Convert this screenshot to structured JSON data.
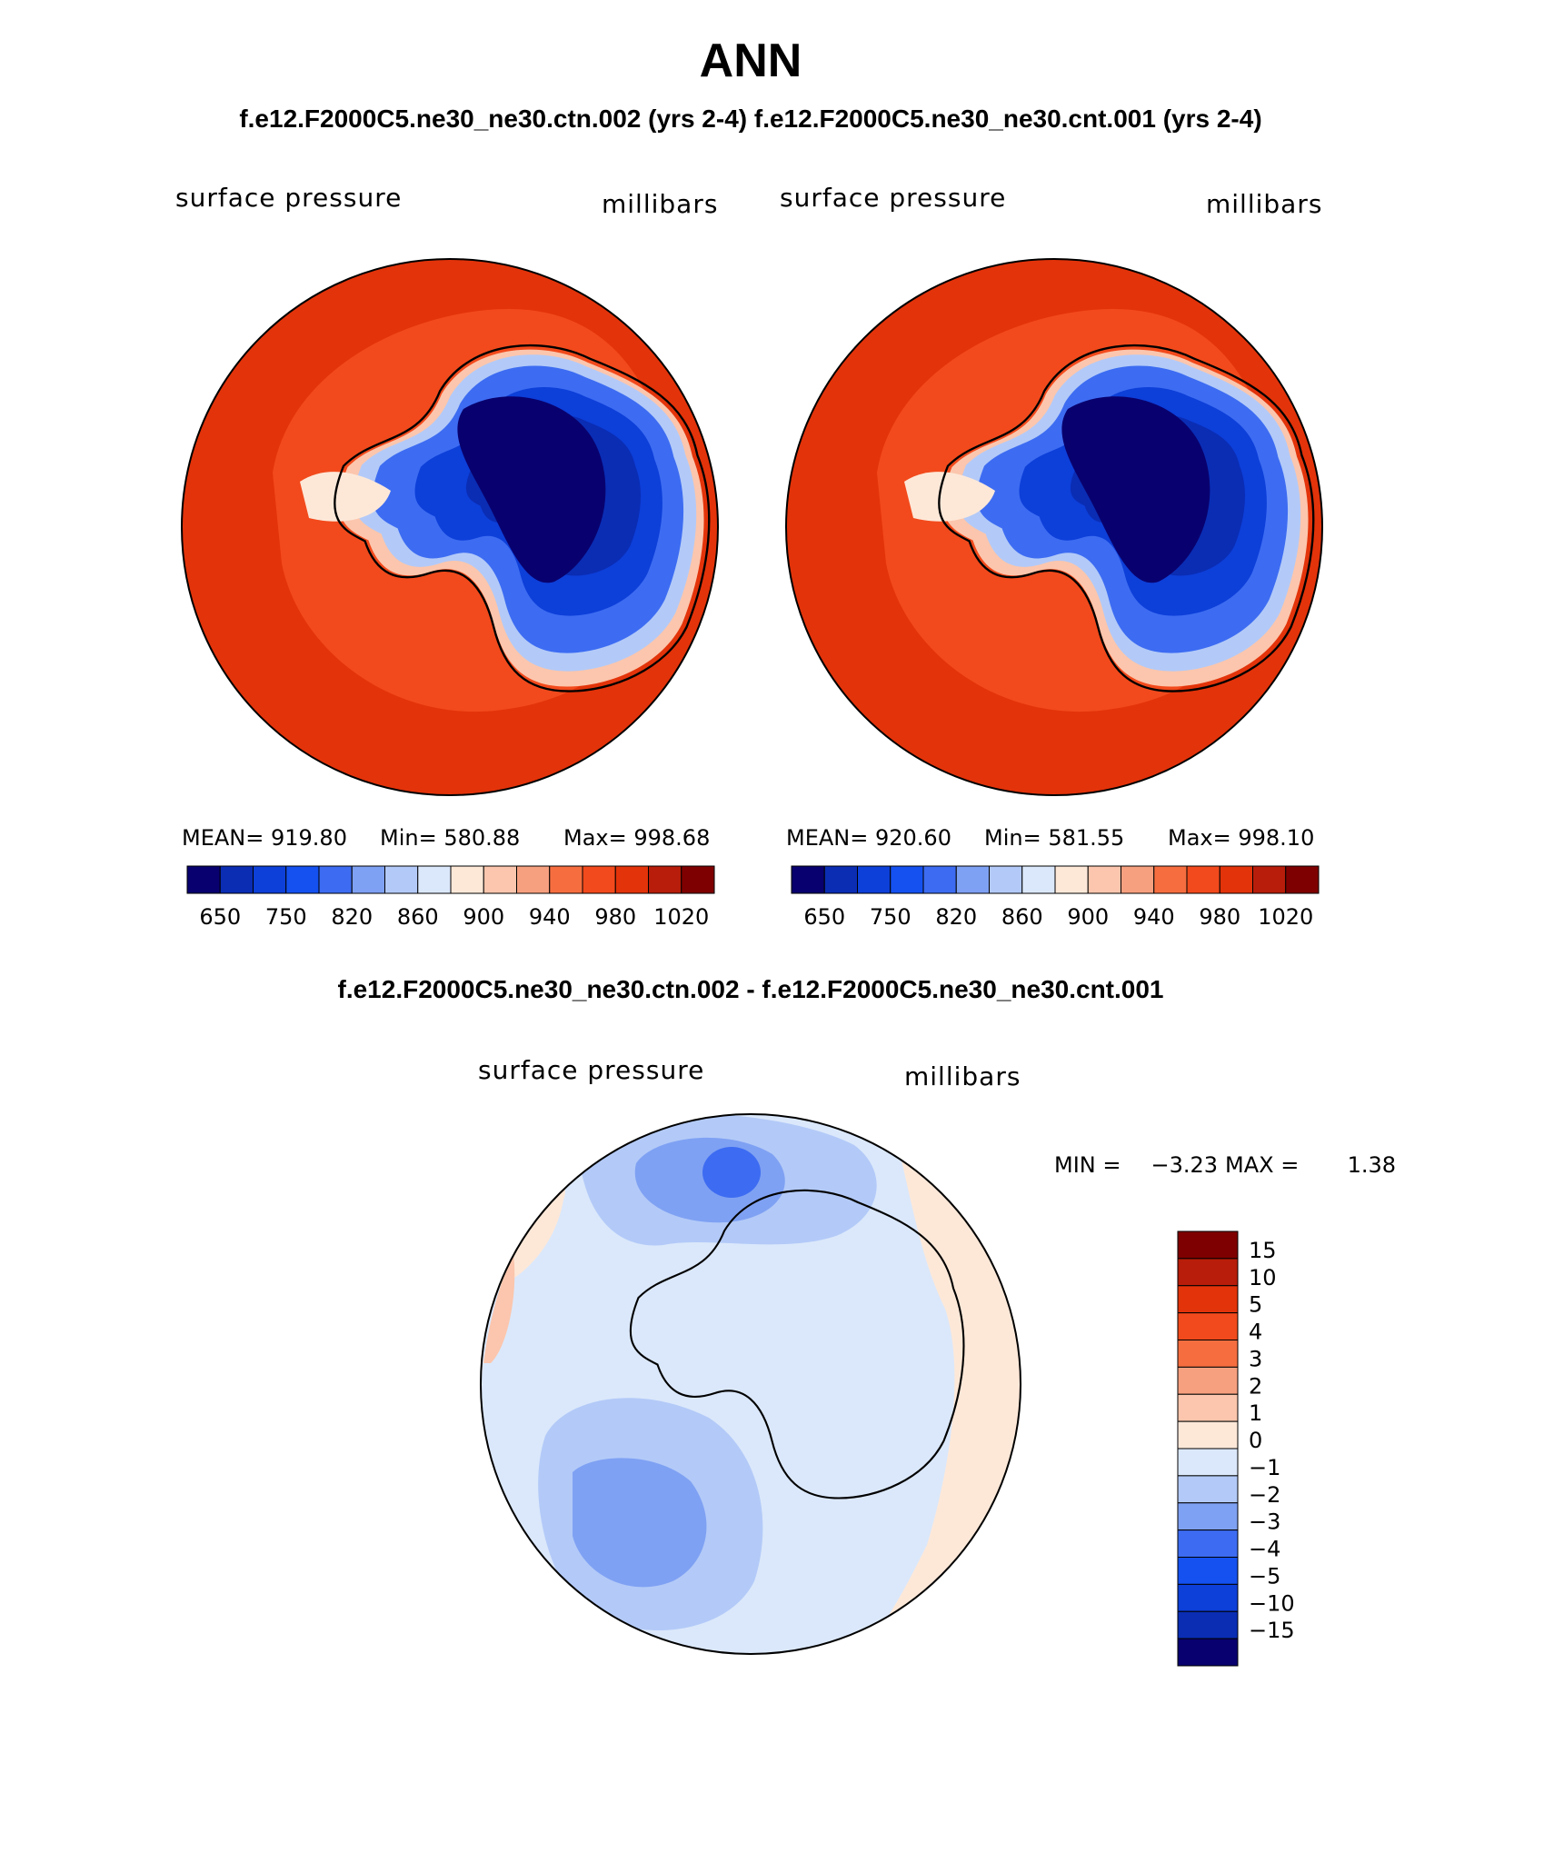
{
  "page": {
    "title": "ANN",
    "subtitle": "f.e12.F2000C5.ne30_ne30.ctn.002 (yrs 2-4) f.e12.F2000C5.ne30_ne30.cnt.001 (yrs 2-4)",
    "diff_title": "f.e12.F2000C5.ne30_ne30.ctn.002 - f.e12.F2000C5.ne30_ne30.cnt.001"
  },
  "panels": [
    {
      "variable": "surface pressure",
      "units": "millibars",
      "mean_label": "MEAN= 919.80",
      "min_label": "Min= 580.88",
      "max_label": "Max= 998.68"
    },
    {
      "variable": "surface pressure",
      "units": "millibars",
      "mean_label": "MEAN= 920.60",
      "min_label": "Min= 581.55",
      "max_label": "Max= 998.10"
    }
  ],
  "diff_panel": {
    "variable": "surface pressure",
    "units": "millibars",
    "min_label": "MIN =",
    "min_value": "−3.23",
    "max_label": "MAX =",
    "max_value": "1.38"
  },
  "colorbar_main": {
    "colors": [
      "#08006e",
      "#0a2db4",
      "#0d3fd9",
      "#1451f0",
      "#3d6cf2",
      "#7fa1f3",
      "#b3caf8",
      "#dbe8fb",
      "#fde8d8",
      "#fbc6ad",
      "#f7a07f",
      "#f66e3f",
      "#f24a1c",
      "#e3330a",
      "#b71d0a",
      "#7f0000"
    ],
    "labels": [
      "650",
      "750",
      "820",
      "860",
      "900",
      "940",
      "980",
      "1020"
    ]
  },
  "colorbar_diff": {
    "colors": [
      "#7f0000",
      "#b71d0a",
      "#e3330a",
      "#f24a1c",
      "#f66e3f",
      "#f7a07f",
      "#fbc6ad",
      "#fde8d8",
      "#dbe8fb",
      "#b3caf8",
      "#7fa1f3",
      "#3d6cf2",
      "#1451f0",
      "#0d3fd9",
      "#0a2db4",
      "#08006e"
    ],
    "labels": [
      "15",
      "10",
      "5",
      "4",
      "3",
      "2",
      "1",
      "0",
      "−1",
      "−2",
      "−3",
      "−4",
      "−5",
      "−10",
      "−15"
    ]
  }
}
